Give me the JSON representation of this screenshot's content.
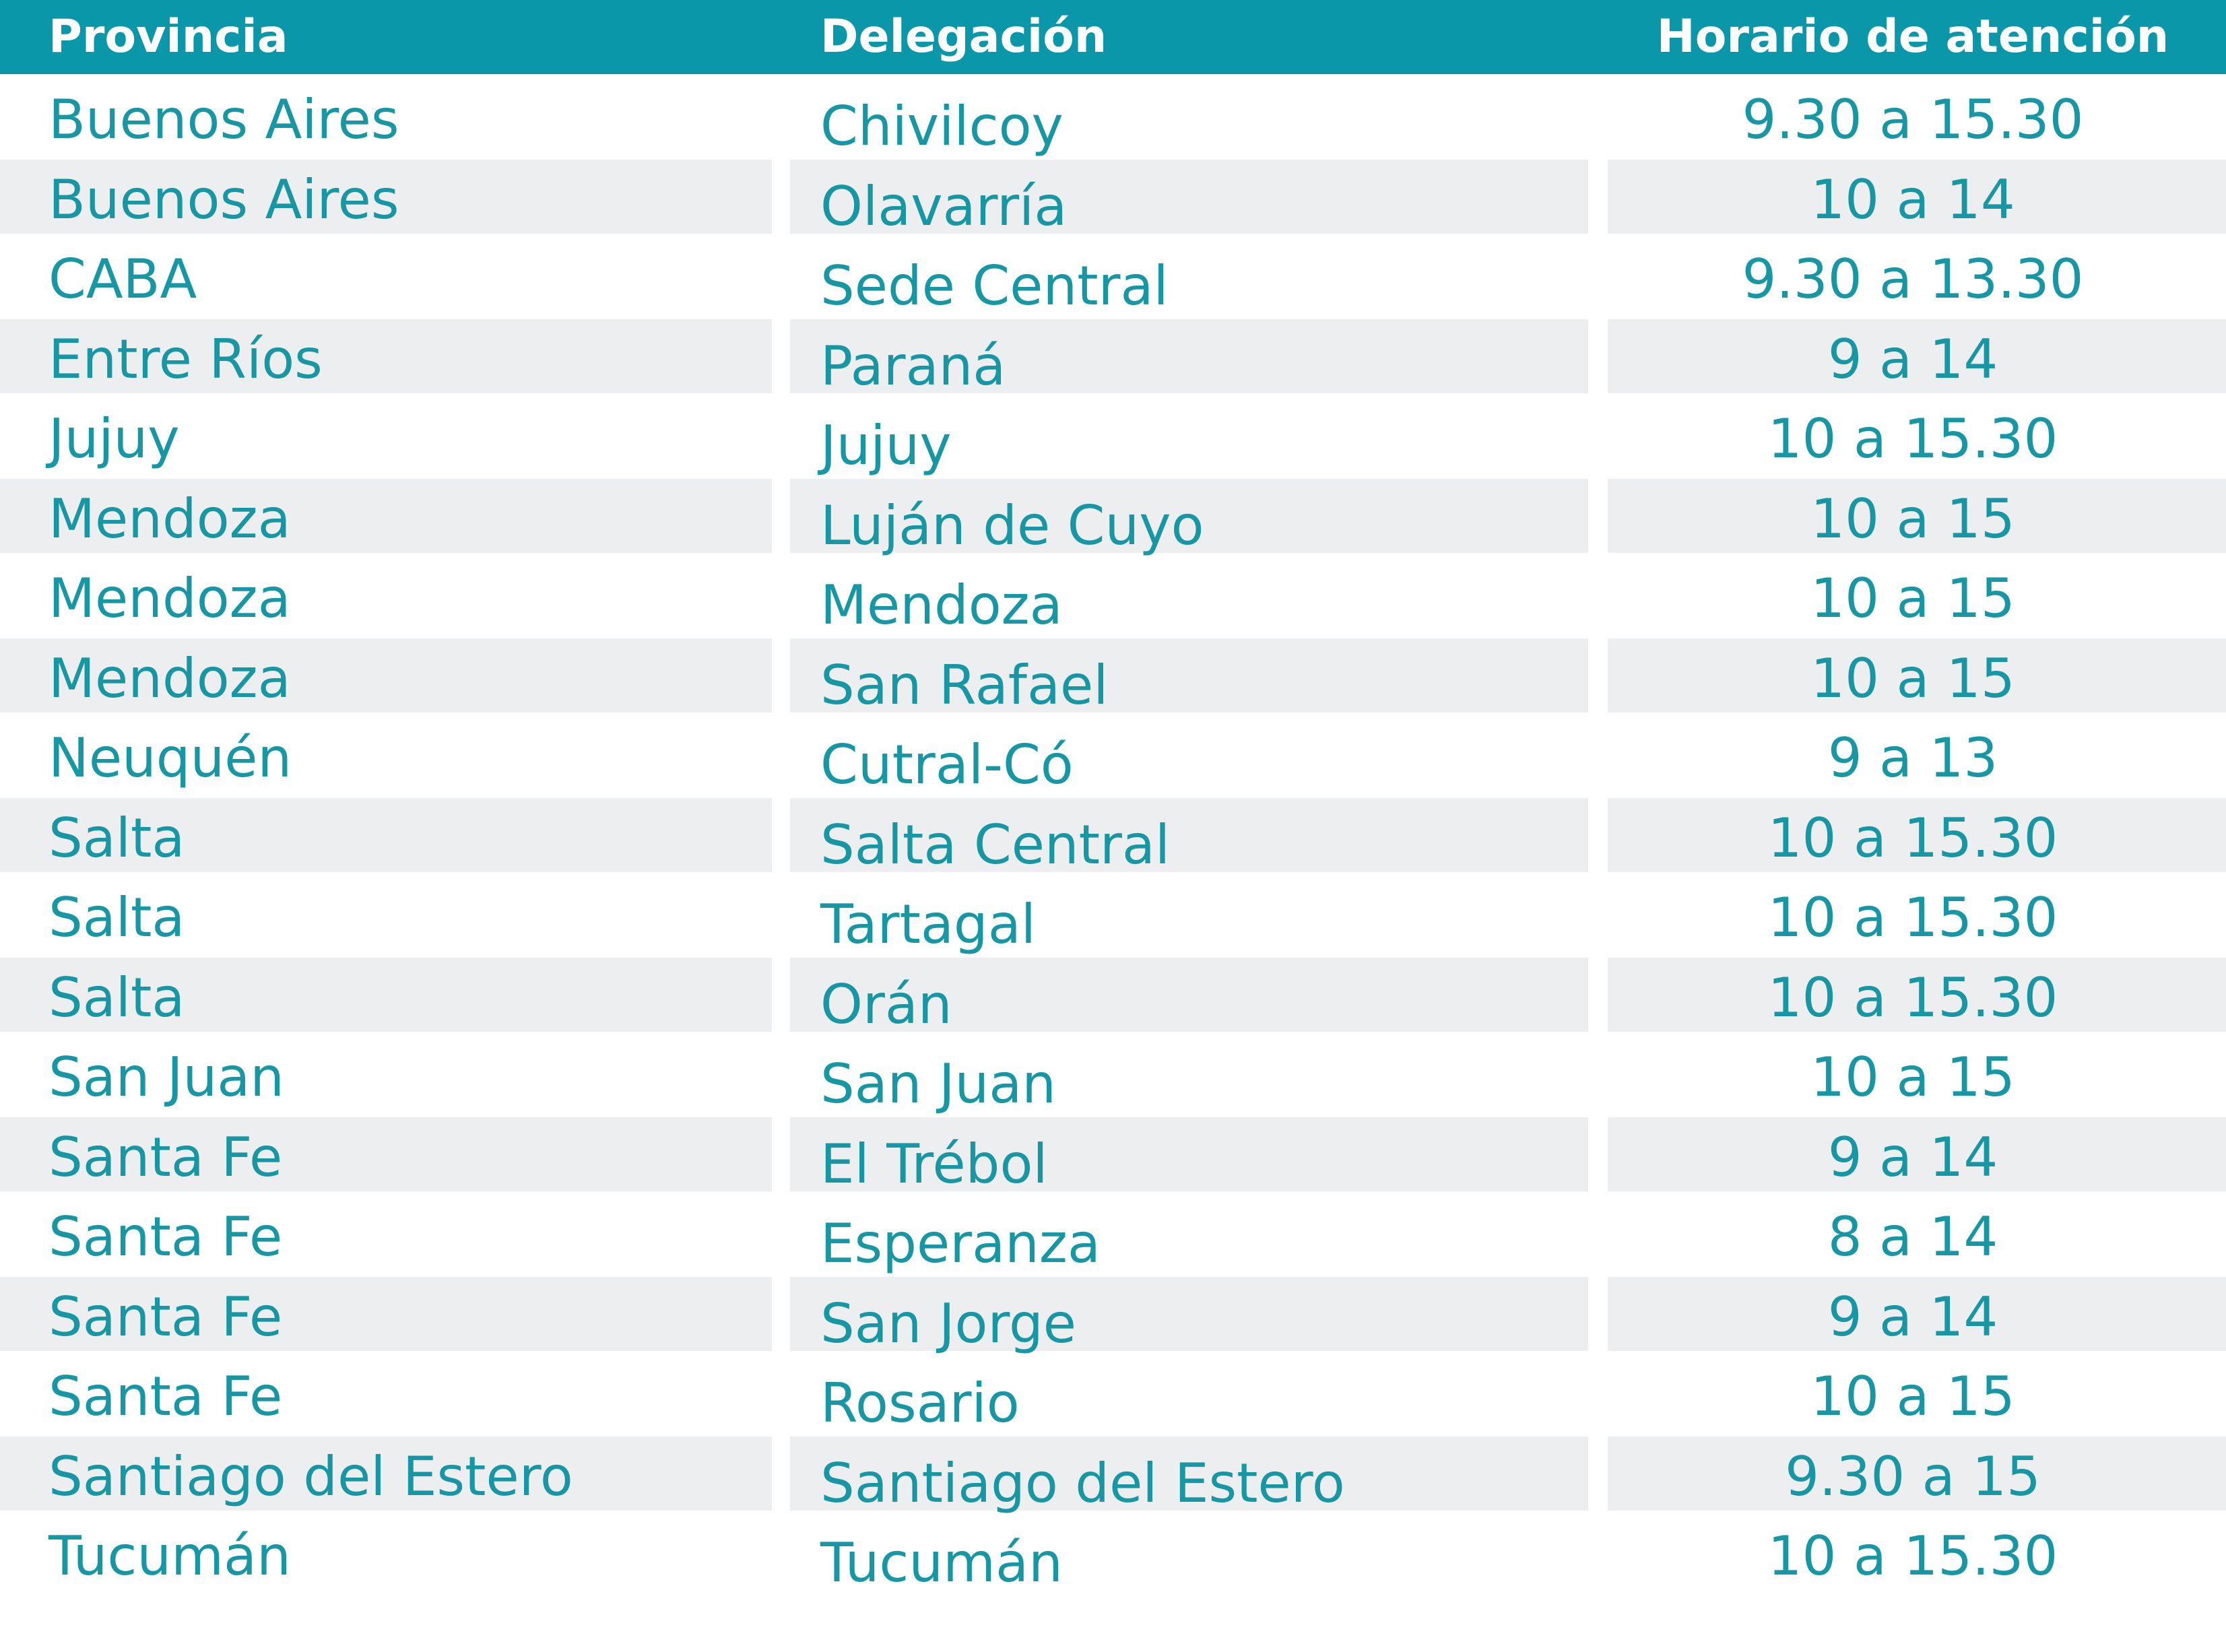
{
  "table": {
    "headers": [
      "Provincia",
      "Delegación",
      "Horario de atención"
    ],
    "rows": [
      [
        "Buenos Aires",
        "Chivilcoy",
        "9.30 a 15.30"
      ],
      [
        "Buenos Aires",
        "Olavarría",
        "10 a 14"
      ],
      [
        "CABA",
        "Sede Central",
        "9.30 a 13.30"
      ],
      [
        "Entre Ríos",
        "Paraná",
        "9 a 14"
      ],
      [
        "Jujuy",
        "Jujuy",
        "10 a 15.30"
      ],
      [
        "Mendoza",
        "Luján de Cuyo",
        "10 a 15"
      ],
      [
        "Mendoza",
        "Mendoza",
        "10 a 15"
      ],
      [
        "Mendoza",
        "San Rafael",
        "10 a 15"
      ],
      [
        "Neuquén",
        "Cutral-Có",
        "9 a 13"
      ],
      [
        "Salta",
        "Salta Central",
        "10 a 15.30"
      ],
      [
        "Salta",
        "Tartagal",
        "10 a 15.30"
      ],
      [
        "Salta",
        "Orán",
        "10 a 15.30"
      ],
      [
        "San Juan",
        "San Juan",
        "10 a 15"
      ],
      [
        "Santa Fe",
        "El Trébol",
        "9 a 14"
      ],
      [
        "Santa Fe",
        "Esperanza",
        "8 a 14"
      ],
      [
        "Santa Fe",
        "San Jorge",
        "9 a 14"
      ],
      [
        "Santa Fe",
        "Rosario",
        "10 a 15"
      ],
      [
        "Santiago del Estero",
        "Santiago del Estero",
        "9.30 a 15"
      ],
      [
        "Tucumán",
        "Tucumán",
        "10 a 15.30"
      ]
    ]
  },
  "colors": {
    "header_bg": "#0997a9",
    "header_text": "#ffffff",
    "cell_text": "#1796a4",
    "stripe_bg": "#edeef0"
  }
}
